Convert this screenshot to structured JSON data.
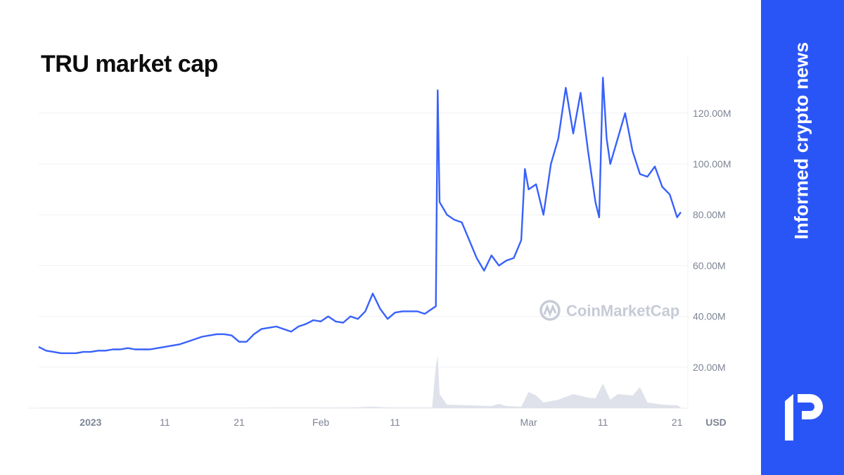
{
  "chart_data": {
    "type": "line",
    "title": "TRU market cap",
    "xlabel": "",
    "ylabel": "",
    "y_unit": "USD",
    "ylim": [
      0,
      135
    ],
    "y_ticks": [
      {
        "value": 20,
        "label": "20.00M"
      },
      {
        "value": 40,
        "label": "40.00M"
      },
      {
        "value": 60,
        "label": "60.00M"
      },
      {
        "value": 80,
        "label": "80.00M"
      },
      {
        "value": 100,
        "label": "100.00M"
      },
      {
        "value": 120,
        "label": "120.00M"
      }
    ],
    "x_ticks": [
      {
        "date": "2023-01-01",
        "label": "2023",
        "bold": true
      },
      {
        "date": "2023-01-11",
        "label": "11"
      },
      {
        "date": "2023-01-21",
        "label": "21"
      },
      {
        "date": "2023-02-01",
        "label": "Feb"
      },
      {
        "date": "2023-02-11",
        "label": "11"
      },
      {
        "date": "2023-03-01",
        "label": "Mar"
      },
      {
        "date": "2023-03-11",
        "label": "11"
      },
      {
        "date": "2023-03-21",
        "label": "21"
      }
    ],
    "xlim": [
      "2022-12-25",
      "2023-03-21T12:00"
    ],
    "grid": true,
    "line_color": "#3861fb",
    "volume_color": "#dfe2ea",
    "watermark": "CoinMarketCap",
    "series": [
      {
        "unit": "M USD",
        "points": [
          [
            "2022-12-25",
            28
          ],
          [
            "2022-12-26",
            26.5
          ],
          [
            "2022-12-27",
            26
          ],
          [
            "2022-12-28",
            25.5
          ],
          [
            "2022-12-29",
            25.5
          ],
          [
            "2022-12-30",
            25.5
          ],
          [
            "2022-12-31",
            26
          ],
          [
            "2023-01-01",
            26
          ],
          [
            "2023-01-02",
            26.5
          ],
          [
            "2023-01-03",
            26.5
          ],
          [
            "2023-01-04",
            27
          ],
          [
            "2023-01-05",
            27
          ],
          [
            "2023-01-06",
            27.5
          ],
          [
            "2023-01-07",
            27
          ],
          [
            "2023-01-08",
            27
          ],
          [
            "2023-01-09",
            27
          ],
          [
            "2023-01-10",
            27.5
          ],
          [
            "2023-01-11",
            28
          ],
          [
            "2023-01-12",
            28.5
          ],
          [
            "2023-01-13",
            29
          ],
          [
            "2023-01-14",
            30
          ],
          [
            "2023-01-15",
            31
          ],
          [
            "2023-01-16",
            32
          ],
          [
            "2023-01-17",
            32.5
          ],
          [
            "2023-01-18",
            33
          ],
          [
            "2023-01-19",
            33
          ],
          [
            "2023-01-20",
            32.5
          ],
          [
            "2023-01-21",
            30
          ],
          [
            "2023-01-22",
            30
          ],
          [
            "2023-01-23",
            33
          ],
          [
            "2023-01-24",
            35
          ],
          [
            "2023-01-25",
            35.5
          ],
          [
            "2023-01-26",
            36
          ],
          [
            "2023-01-27",
            35
          ],
          [
            "2023-01-28",
            34
          ],
          [
            "2023-01-29",
            36
          ],
          [
            "2023-01-30",
            37
          ],
          [
            "2023-01-31",
            38.5
          ],
          [
            "2023-02-01",
            38
          ],
          [
            "2023-02-02",
            40
          ],
          [
            "2023-02-03",
            38
          ],
          [
            "2023-02-04",
            37.5
          ],
          [
            "2023-02-05",
            40
          ],
          [
            "2023-02-06",
            39
          ],
          [
            "2023-02-07",
            42
          ],
          [
            "2023-02-08",
            49
          ],
          [
            "2023-02-09",
            43
          ],
          [
            "2023-02-10",
            39
          ],
          [
            "2023-02-11",
            41.5
          ],
          [
            "2023-02-12",
            42
          ],
          [
            "2023-02-13",
            42
          ],
          [
            "2023-02-14",
            42
          ],
          [
            "2023-02-15",
            41
          ],
          [
            "2023-02-16",
            43
          ],
          [
            "2023-02-16T12:00",
            44
          ],
          [
            "2023-02-16T18:00",
            129
          ],
          [
            "2023-02-17",
            85
          ],
          [
            "2023-02-18",
            80
          ],
          [
            "2023-02-19",
            78
          ],
          [
            "2023-02-20",
            77
          ],
          [
            "2023-02-21",
            70
          ],
          [
            "2023-02-22",
            63
          ],
          [
            "2023-02-23",
            58
          ],
          [
            "2023-02-24",
            64
          ],
          [
            "2023-02-25",
            60
          ],
          [
            "2023-02-26",
            62
          ],
          [
            "2023-02-27",
            63
          ],
          [
            "2023-02-28",
            70
          ],
          [
            "2023-02-28T12:00",
            98
          ],
          [
            "2023-03-01",
            90
          ],
          [
            "2023-03-02",
            92
          ],
          [
            "2023-03-03",
            80
          ],
          [
            "2023-03-04",
            100
          ],
          [
            "2023-03-05",
            110
          ],
          [
            "2023-03-06",
            130
          ],
          [
            "2023-03-07",
            112
          ],
          [
            "2023-03-08",
            128
          ],
          [
            "2023-03-09",
            105
          ],
          [
            "2023-03-10",
            85
          ],
          [
            "2023-03-10T12:00",
            79
          ],
          [
            "2023-03-11",
            134
          ],
          [
            "2023-03-11T12:00",
            110
          ],
          [
            "2023-03-12",
            100
          ],
          [
            "2023-03-13",
            110
          ],
          [
            "2023-03-14",
            120
          ],
          [
            "2023-03-15",
            105
          ],
          [
            "2023-03-16",
            96
          ],
          [
            "2023-03-17",
            95
          ],
          [
            "2023-03-18",
            99
          ],
          [
            "2023-03-19",
            91
          ],
          [
            "2023-03-20",
            88
          ],
          [
            "2023-03-21",
            79
          ],
          [
            "2023-03-21T12:00",
            81
          ]
        ]
      }
    ],
    "volume_relative": [
      [
        "2022-12-25",
        0.5
      ],
      [
        "2023-01-15",
        0.5
      ],
      [
        "2023-02-05",
        1
      ],
      [
        "2023-02-08",
        2
      ],
      [
        "2023-02-10",
        1
      ],
      [
        "2023-02-16",
        1
      ],
      [
        "2023-02-16T12:00",
        60
      ],
      [
        "2023-02-16T18:00",
        75
      ],
      [
        "2023-02-17",
        20
      ],
      [
        "2023-02-18",
        5
      ],
      [
        "2023-02-21",
        4
      ],
      [
        "2023-02-24",
        3
      ],
      [
        "2023-02-25",
        6
      ],
      [
        "2023-02-26",
        3
      ],
      [
        "2023-02-28",
        2
      ],
      [
        "2023-03-01",
        23
      ],
      [
        "2023-03-02",
        18
      ],
      [
        "2023-03-03",
        8
      ],
      [
        "2023-03-05",
        12
      ],
      [
        "2023-03-07",
        20
      ],
      [
        "2023-03-09",
        15
      ],
      [
        "2023-03-10",
        14
      ],
      [
        "2023-03-11",
        35
      ],
      [
        "2023-03-12",
        12
      ],
      [
        "2023-03-13",
        20
      ],
      [
        "2023-03-15",
        18
      ],
      [
        "2023-03-16",
        30
      ],
      [
        "2023-03-17",
        8
      ],
      [
        "2023-03-19",
        5
      ],
      [
        "2023-03-21",
        4
      ],
      [
        "2023-03-21T12:00",
        1
      ]
    ]
  },
  "brand": {
    "tagline": "Informed crypto news",
    "logo_text": "iP",
    "panel_color": "#2a55f6"
  }
}
